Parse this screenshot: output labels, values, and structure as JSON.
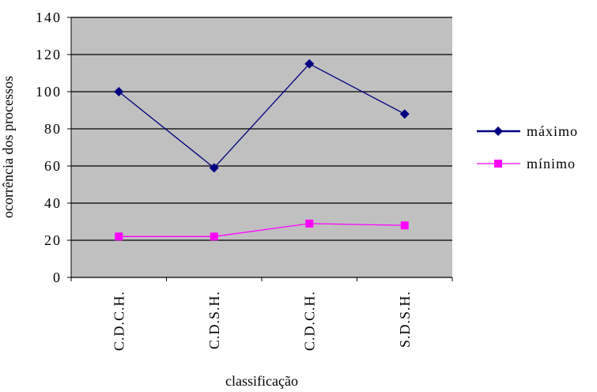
{
  "chart_data": {
    "type": "line",
    "categories": [
      "C.D.C.H.",
      "C.D.S.H.",
      "C.D.C.H.",
      "S.D.S.H."
    ],
    "series": [
      {
        "name": "máximo",
        "color": "#000080",
        "marker": "diamond",
        "values": [
          100,
          59,
          115,
          88
        ]
      },
      {
        "name": "mínimo",
        "color": "#ff00ff",
        "marker": "square",
        "values": [
          22,
          22,
          29,
          28
        ]
      }
    ],
    "x_label": "classificação",
    "y_label": "ocorrência dos processos",
    "ylim": [
      0,
      140
    ],
    "yticks": [
      0,
      20,
      40,
      60,
      80,
      100,
      120,
      140
    ],
    "grid": true,
    "legend": "right"
  }
}
